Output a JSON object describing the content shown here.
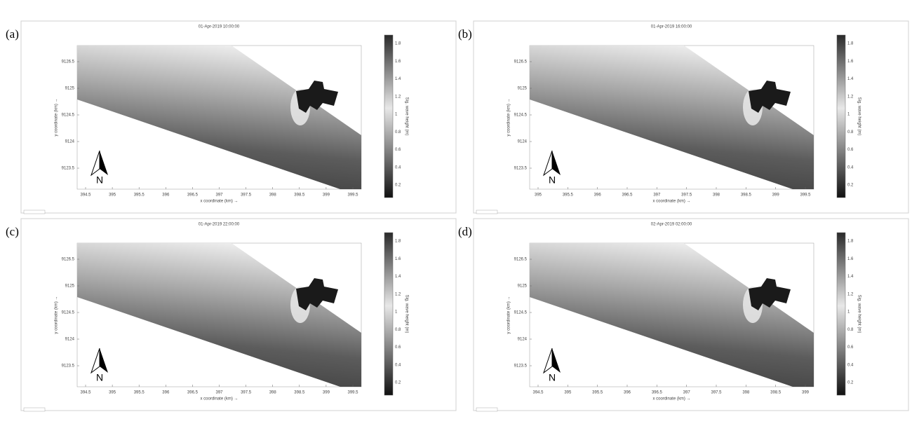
{
  "panels": [
    {
      "label": "(a)",
      "title": "01-Apr-2019 10:00:00",
      "x_label": "x coordinate (km) →",
      "y_label": "y coordinate (km) →",
      "colorbar_label": "Sig. wave height (m)",
      "north": "N",
      "xticks": [
        "394.5",
        "395",
        "395.5",
        "396",
        "396.5",
        "397",
        "397.5",
        "398",
        "398.5",
        "399",
        "399.5"
      ],
      "yticks": [
        "9126.5",
        "9125",
        "9124.5",
        "9124",
        "9123.5"
      ],
      "colorbar_ticks": [
        "1.8",
        "1.6",
        "1.4",
        "1.2",
        "1",
        "0.8",
        "0.6",
        "0.4",
        "0.2"
      ]
    },
    {
      "label": "(b)",
      "title": "01-Apr-2019 16:00:00",
      "x_label": "x coordinate (km) →",
      "y_label": "y coordinate (km) →",
      "colorbar_label": "Sig. wave height (m)",
      "north": "N",
      "xticks": [
        "395",
        "395.5",
        "396",
        "396.5",
        "397",
        "397.5",
        "398",
        "398.5",
        "399",
        "399.5"
      ],
      "yticks": [
        "9126.5",
        "9125",
        "9124.5",
        "9124",
        "9123.5"
      ],
      "colorbar_ticks": [
        "1.8",
        "1.6",
        "1.4",
        "1.2",
        "1",
        "0.8",
        "0.6",
        "0.4",
        "0.2"
      ]
    },
    {
      "label": "(c)",
      "title": "01-Apr-2019 22:00:00",
      "x_label": "x coordinate (km) →",
      "y_label": "y coordinate (km) →",
      "colorbar_label": "Sig. wave height (m)",
      "north": "N",
      "xticks": [
        "394.5",
        "395",
        "395.5",
        "396",
        "396.5",
        "397",
        "397.5",
        "398",
        "398.5",
        "399",
        "399.5"
      ],
      "yticks": [
        "9126.5",
        "9125",
        "9124.5",
        "9124",
        "9123.5"
      ],
      "colorbar_ticks": [
        "1.8",
        "1.6",
        "1.4",
        "1.2",
        "1",
        "0.8",
        "0.6",
        "0.4",
        "0.2"
      ]
    },
    {
      "label": "(d)",
      "title": "02-Apr-2019 02:00:00",
      "x_label": "x coordinate (km) →",
      "y_label": "y coordinate (km) →",
      "colorbar_label": "Sig. wave height (m)",
      "north": "N",
      "xticks": [
        "394.5",
        "395",
        "395.5",
        "396",
        "396.5",
        "397",
        "397.5",
        "398",
        "398.5",
        "399"
      ],
      "yticks": [
        "9126.5",
        "9125",
        "9124.5",
        "9124",
        "9123.5"
      ],
      "colorbar_ticks": [
        "1.8",
        "1.6",
        "1.4",
        "1.2",
        "1",
        "0.8",
        "0.6",
        "0.4",
        "0.2"
      ]
    }
  ]
}
